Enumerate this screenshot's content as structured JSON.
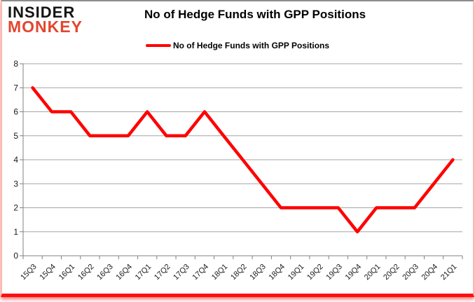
{
  "logo": {
    "line1": "INSIDER",
    "line2": "MONKEY"
  },
  "header": {
    "title": "No of Hedge Funds with GPP Positions"
  },
  "legend": {
    "label": "No of Hedge Funds with GPP Positions"
  },
  "colors": {
    "line": "#ff0000",
    "grid": "#a6a6a6",
    "axis": "#808080",
    "logo_red": "#e2462f",
    "frame_glow_red": "#fb1010",
    "frame_top_gray": "#8c8c8c"
  },
  "chart_data": {
    "type": "line",
    "title": "No of Hedge Funds with GPP Positions",
    "xlabel": "",
    "ylabel": "",
    "categories": [
      "15Q3",
      "15Q4",
      "16Q1",
      "16Q2",
      "16Q3",
      "16Q4",
      "17Q1",
      "17Q2",
      "17Q3",
      "17Q4",
      "18Q1",
      "18Q2",
      "18Q3",
      "18Q4",
      "19Q1",
      "19Q2",
      "19Q3",
      "19Q4",
      "20Q1",
      "20Q2",
      "20Q3",
      "20Q4",
      "21Q1"
    ],
    "series": [
      {
        "name": "No of Hedge Funds with GPP Positions",
        "values": [
          7,
          6,
          6,
          5,
          5,
          5,
          6,
          5,
          5,
          6,
          5,
          4,
          3,
          2,
          2,
          2,
          2,
          1,
          2,
          2,
          2,
          3,
          4
        ]
      }
    ],
    "ylim": [
      0,
      8
    ],
    "yticks": [
      0,
      1,
      2,
      3,
      4,
      5,
      6,
      7,
      8
    ],
    "grid": true,
    "legend_position": "top-center"
  }
}
